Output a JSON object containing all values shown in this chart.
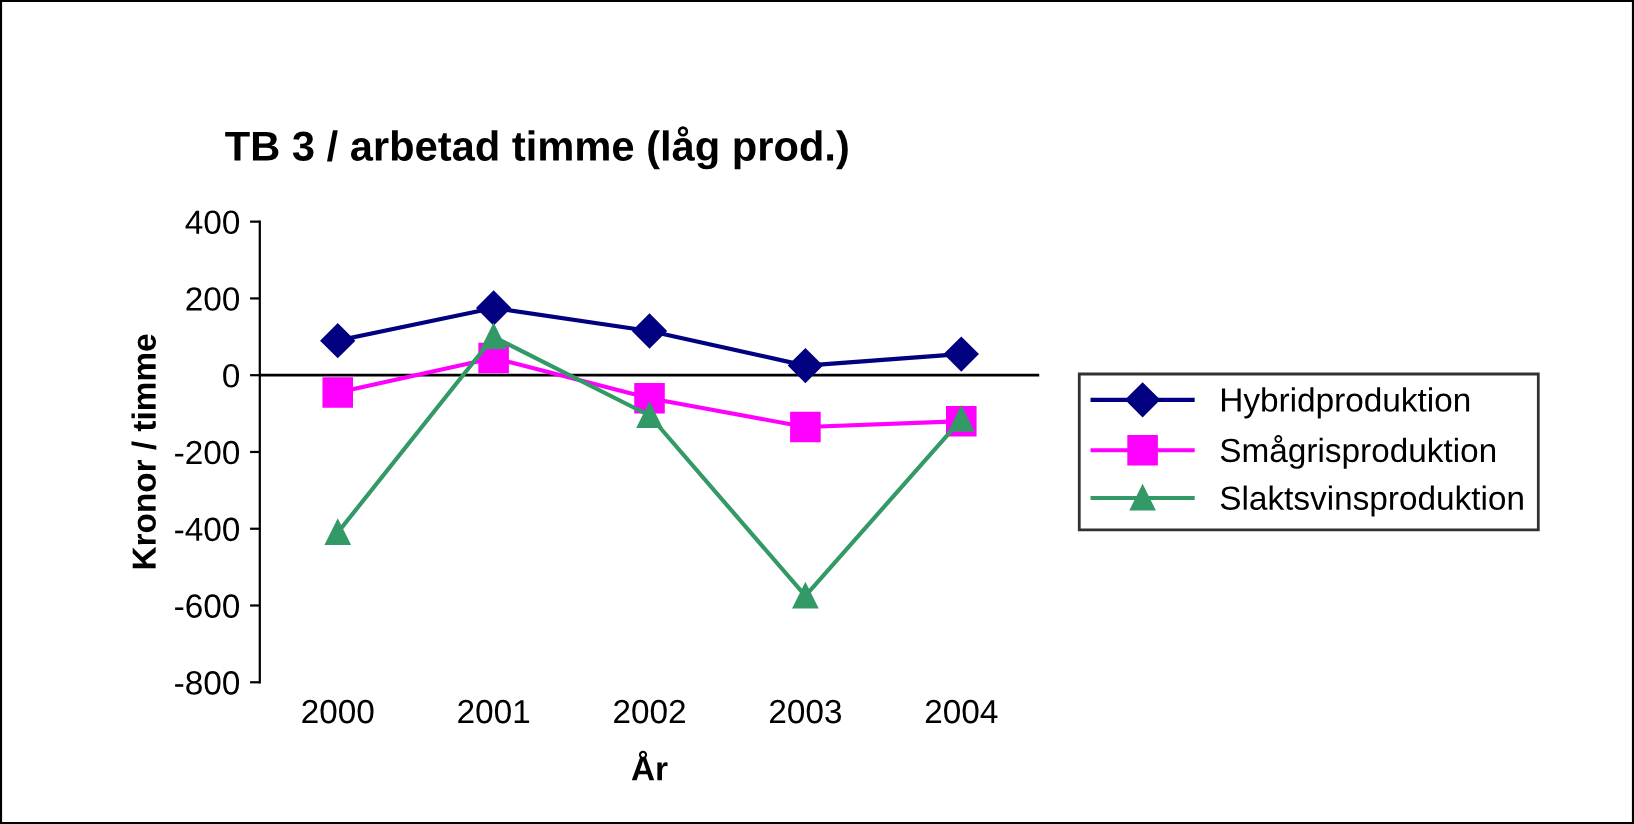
{
  "chart_data": {
    "type": "line",
    "title": "TB 3 / arbetad timme (låg prod.)",
    "xlabel": "År",
    "ylabel": "Kronor / timme",
    "categories": [
      "2000",
      "2001",
      "2002",
      "2003",
      "2004"
    ],
    "series": [
      {
        "name": "Hybridproduktion",
        "color": "#000080",
        "marker": "diamond",
        "values": [
          90,
          175,
          115,
          25,
          55
        ]
      },
      {
        "name": "Smågrisproduktion",
        "color": "#ff00ff",
        "marker": "square",
        "values": [
          -45,
          45,
          -60,
          -135,
          -120
        ]
      },
      {
        "name": "Slaktsvinsproduktion",
        "color": "#339966",
        "marker": "triangle",
        "values": [
          -410,
          100,
          -105,
          -575,
          -115
        ]
      }
    ],
    "ylim": [
      -800,
      400
    ],
    "yticks": [
      -800,
      -600,
      -400,
      -200,
      0,
      200,
      400
    ],
    "ref_lines": [
      {
        "axis": "y",
        "value": 0,
        "color": "#000000"
      }
    ],
    "grid": false,
    "legend": "right",
    "line_style": "solid"
  }
}
